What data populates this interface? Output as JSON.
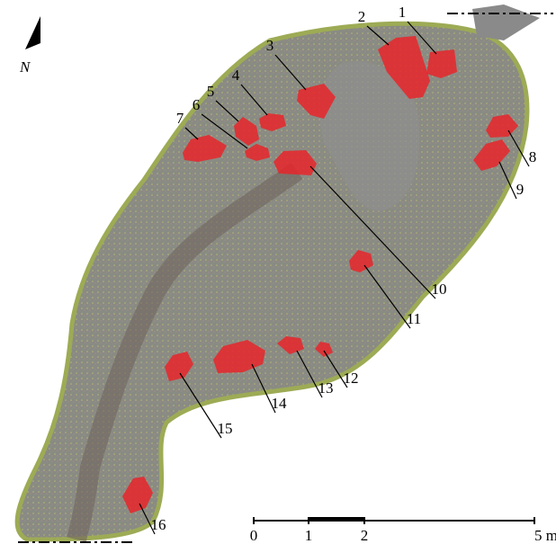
{
  "north": "N",
  "markers": [
    {
      "label": "1"
    },
    {
      "label": "2"
    },
    {
      "label": "3"
    },
    {
      "label": "4"
    },
    {
      "label": "5"
    },
    {
      "label": "6"
    },
    {
      "label": "7"
    },
    {
      "label": "8"
    },
    {
      "label": "9"
    },
    {
      "label": "10"
    },
    {
      "label": "11"
    },
    {
      "label": "12"
    },
    {
      "label": "13"
    },
    {
      "label": "14"
    },
    {
      "label": "15"
    },
    {
      "label": "16"
    }
  ],
  "scale_bar": {
    "labels": [
      "0",
      "1",
      "2",
      "5 m"
    ]
  }
}
